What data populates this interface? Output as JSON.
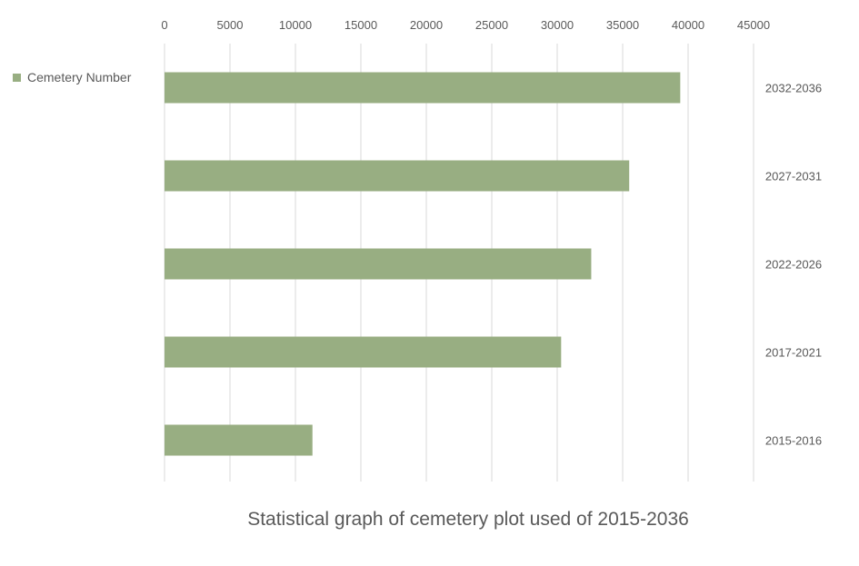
{
  "chart_data": {
    "type": "bar",
    "orientation": "horizontal",
    "title": "Statistical graph of cemetery plot used of 2015-2036",
    "xlabel": "",
    "ylabel": "",
    "categories": [
      "2015-2016",
      "2017-2021",
      "2022-2026",
      "2027-2031",
      "2032-2036"
    ],
    "series": [
      {
        "name": "Cemetery Number",
        "values": [
          11300,
          30300,
          32600,
          35500,
          39400
        ],
        "color": "#98ae82"
      }
    ],
    "xlim": [
      0,
      45000
    ],
    "x_ticks": [
      0,
      5000,
      10000,
      15000,
      20000,
      25000,
      30000,
      35000,
      40000,
      45000
    ],
    "x_axis_position": "top",
    "category_axis_position": "right",
    "grid": true,
    "gridline_color": "#d9d9d9",
    "legend_position": "top-left"
  }
}
